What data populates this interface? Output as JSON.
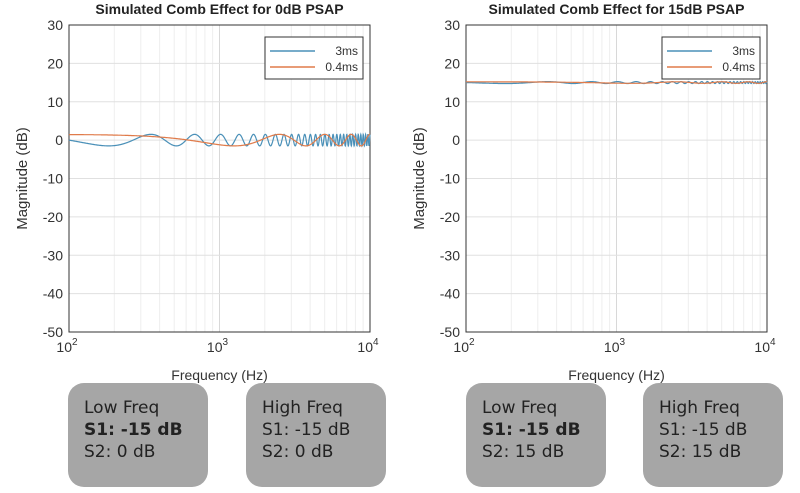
{
  "chart_data": [
    {
      "type": "line",
      "title": "Simulated Comb Effect for 0dB PSAP",
      "xlabel": "Frequency (Hz)",
      "ylabel": "Magnitude (dB)",
      "xscale": "log",
      "xlim": [
        100,
        10000
      ],
      "ylim": [
        -50,
        30
      ],
      "yticks": [
        "30",
        "20",
        "10",
        "0",
        "-10",
        "-20",
        "-30",
        "-40",
        "-50"
      ],
      "xticks": [
        {
          "base": "10",
          "exp": "2"
        },
        {
          "base": "10",
          "exp": "3"
        },
        {
          "base": "10",
          "exp": "4"
        }
      ],
      "grid": true,
      "legend": "top-right",
      "series": [
        {
          "name": "3ms",
          "color": "#4a90b8",
          "level_db": 0,
          "ripple_db": 1.5,
          "delay_ms": 3
        },
        {
          "name": "0.4ms",
          "color": "#e07b4a",
          "level_db": 0,
          "ripple_db": 1.5,
          "delay_ms": 0.4
        }
      ]
    },
    {
      "type": "line",
      "title": "Simulated Comb Effect for 15dB PSAP",
      "xlabel": "Frequency (Hz)",
      "ylabel": "Magnitude (dB)",
      "xscale": "log",
      "xlim": [
        100,
        10000
      ],
      "ylim": [
        -50,
        30
      ],
      "yticks": [
        "30",
        "20",
        "10",
        "0",
        "-10",
        "-20",
        "-30",
        "-40",
        "-50"
      ],
      "xticks": [
        {
          "base": "10",
          "exp": "2"
        },
        {
          "base": "10",
          "exp": "3"
        },
        {
          "base": "10",
          "exp": "4"
        }
      ],
      "grid": true,
      "legend": "top-right",
      "series": [
        {
          "name": "3ms",
          "color": "#4a90b8",
          "level_db": 15,
          "ripple_db": 0.25,
          "delay_ms": 3
        },
        {
          "name": "0.4ms",
          "color": "#e07b4a",
          "level_db": 15,
          "ripple_db": 0.2,
          "delay_ms": 0.4
        }
      ]
    }
  ],
  "boxes": [
    {
      "title": "Low Freq",
      "s1": "S1: -15 dB",
      "s2": "S2: 0 dB",
      "s1_bold": true
    },
    {
      "title": "High Freq",
      "s1": "S1: -15 dB",
      "s2": "S2: 0 dB",
      "s1_bold": false
    },
    {
      "title": "Low Freq",
      "s1": "S1: -15 dB",
      "s2": "S2: 15 dB",
      "s1_bold": true
    },
    {
      "title": "High Freq",
      "s1": "S1: -15 dB",
      "s2": "S2: 15 dB",
      "s1_bold": false
    }
  ]
}
